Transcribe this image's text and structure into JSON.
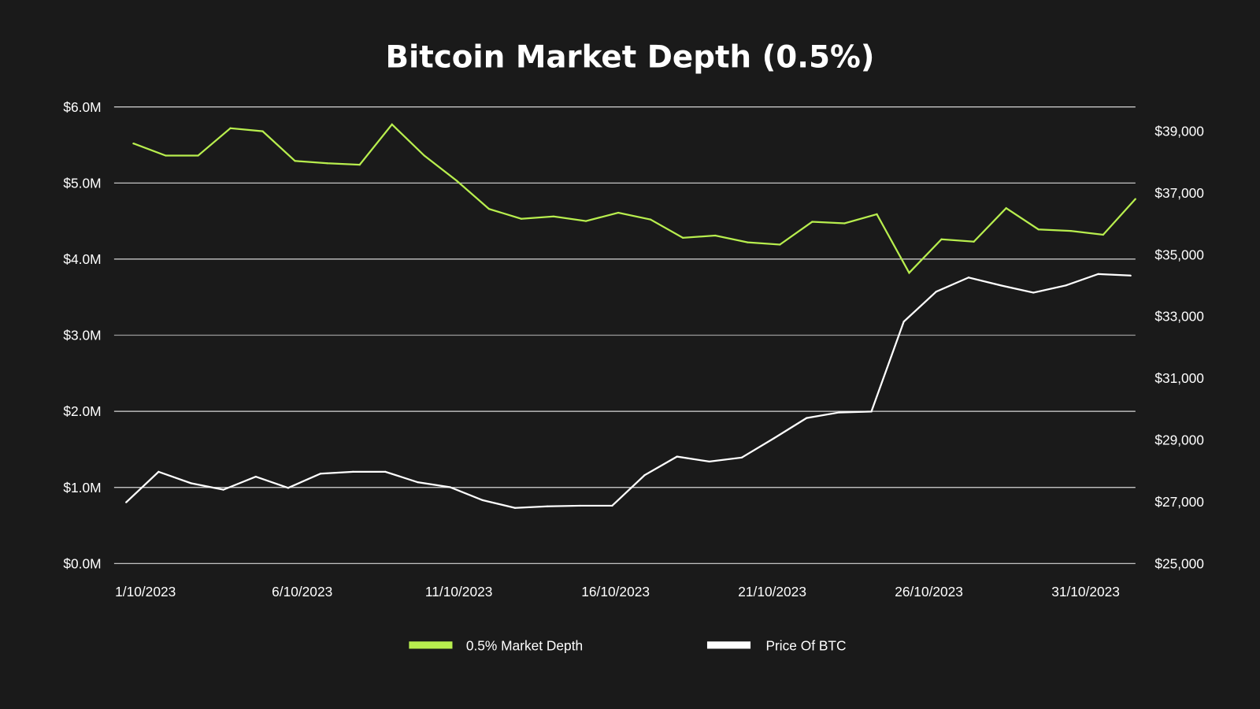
{
  "chart_data": {
    "type": "line",
    "title": "Bitcoin Market Depth (0.5%)",
    "background": "#1a1a1a",
    "grid": true,
    "legend_placement": "bottom",
    "x": [
      "2023-10-01",
      "2023-10-02",
      "2023-10-03",
      "2023-10-04",
      "2023-10-05",
      "2023-10-06",
      "2023-10-07",
      "2023-10-08",
      "2023-10-09",
      "2023-10-10",
      "2023-10-11",
      "2023-10-12",
      "2023-10-13",
      "2023-10-14",
      "2023-10-15",
      "2023-10-16",
      "2023-10-17",
      "2023-10-18",
      "2023-10-19",
      "2023-10-20",
      "2023-10-21",
      "2023-10-22",
      "2023-10-23",
      "2023-10-24",
      "2023-10-25",
      "2023-10-26",
      "2023-10-27",
      "2023-10-28",
      "2023-10-29",
      "2023-10-30",
      "2023-10-31",
      "2023-11-01"
    ],
    "x_ticks": [
      {
        "day": 1,
        "label": "1/10/2023"
      },
      {
        "day": 6,
        "label": "6/10/2023"
      },
      {
        "day": 11,
        "label": "11/10/2023"
      },
      {
        "day": 16,
        "label": "16/10/2023"
      },
      {
        "day": 21,
        "label": "21/10/2023"
      },
      {
        "day": 26,
        "label": "26/10/2023"
      },
      {
        "day": 31,
        "label": "31/10/2023"
      }
    ],
    "y_left": {
      "range": [
        0,
        6
      ],
      "unit": "million USD",
      "ticks": [
        {
          "v": 6,
          "label": "$6.0M"
        },
        {
          "v": 5,
          "label": "$5.0M"
        },
        {
          "v": 4,
          "label": "$4.0M"
        },
        {
          "v": 3,
          "label": "$3.0M"
        },
        {
          "v": 2,
          "label": "$2.0M"
        },
        {
          "v": 1,
          "label": "$1.0M"
        },
        {
          "v": 0,
          "label": "$0.0M"
        }
      ]
    },
    "y_right": {
      "range": [
        25000,
        39000
      ],
      "ticks": [
        {
          "v": 39000,
          "label": "$39,000"
        },
        {
          "v": 37000,
          "label": "$37,000"
        },
        {
          "v": 35000,
          "label": "$35,000"
        },
        {
          "v": 33000,
          "label": "$33,000"
        },
        {
          "v": 31000,
          "label": "$31,000"
        },
        {
          "v": 29000,
          "label": "$29,000"
        },
        {
          "v": 27000,
          "label": "$27,000"
        },
        {
          "v": 25000,
          "label": "$25,000"
        }
      ]
    },
    "series": [
      {
        "name": "0.5% Market Depth",
        "axis": "left",
        "color": "#b8ee4e",
        "values": [
          5.52,
          5.36,
          5.36,
          5.72,
          5.68,
          5.29,
          5.26,
          5.24,
          5.77,
          5.36,
          5.03,
          4.66,
          4.53,
          4.56,
          4.5,
          4.61,
          4.52,
          4.28,
          4.31,
          4.22,
          4.19,
          4.49,
          4.47,
          4.59,
          3.82,
          4.26,
          4.23,
          4.67,
          4.39,
          4.37,
          4.32,
          4.79
        ]
      },
      {
        "name": "Price Of BTC",
        "axis": "right",
        "color": "#ffffff",
        "values": [
          26980,
          27970,
          27600,
          27390,
          27810,
          27450,
          27910,
          27970,
          27970,
          27630,
          27470,
          27050,
          26800,
          26850,
          26870,
          26870,
          27860,
          28460,
          28300,
          28430,
          29060,
          29710,
          29890,
          29920,
          32830,
          33800,
          34260,
          34000,
          33770,
          34000,
          34370,
          34320
        ]
      }
    ]
  }
}
